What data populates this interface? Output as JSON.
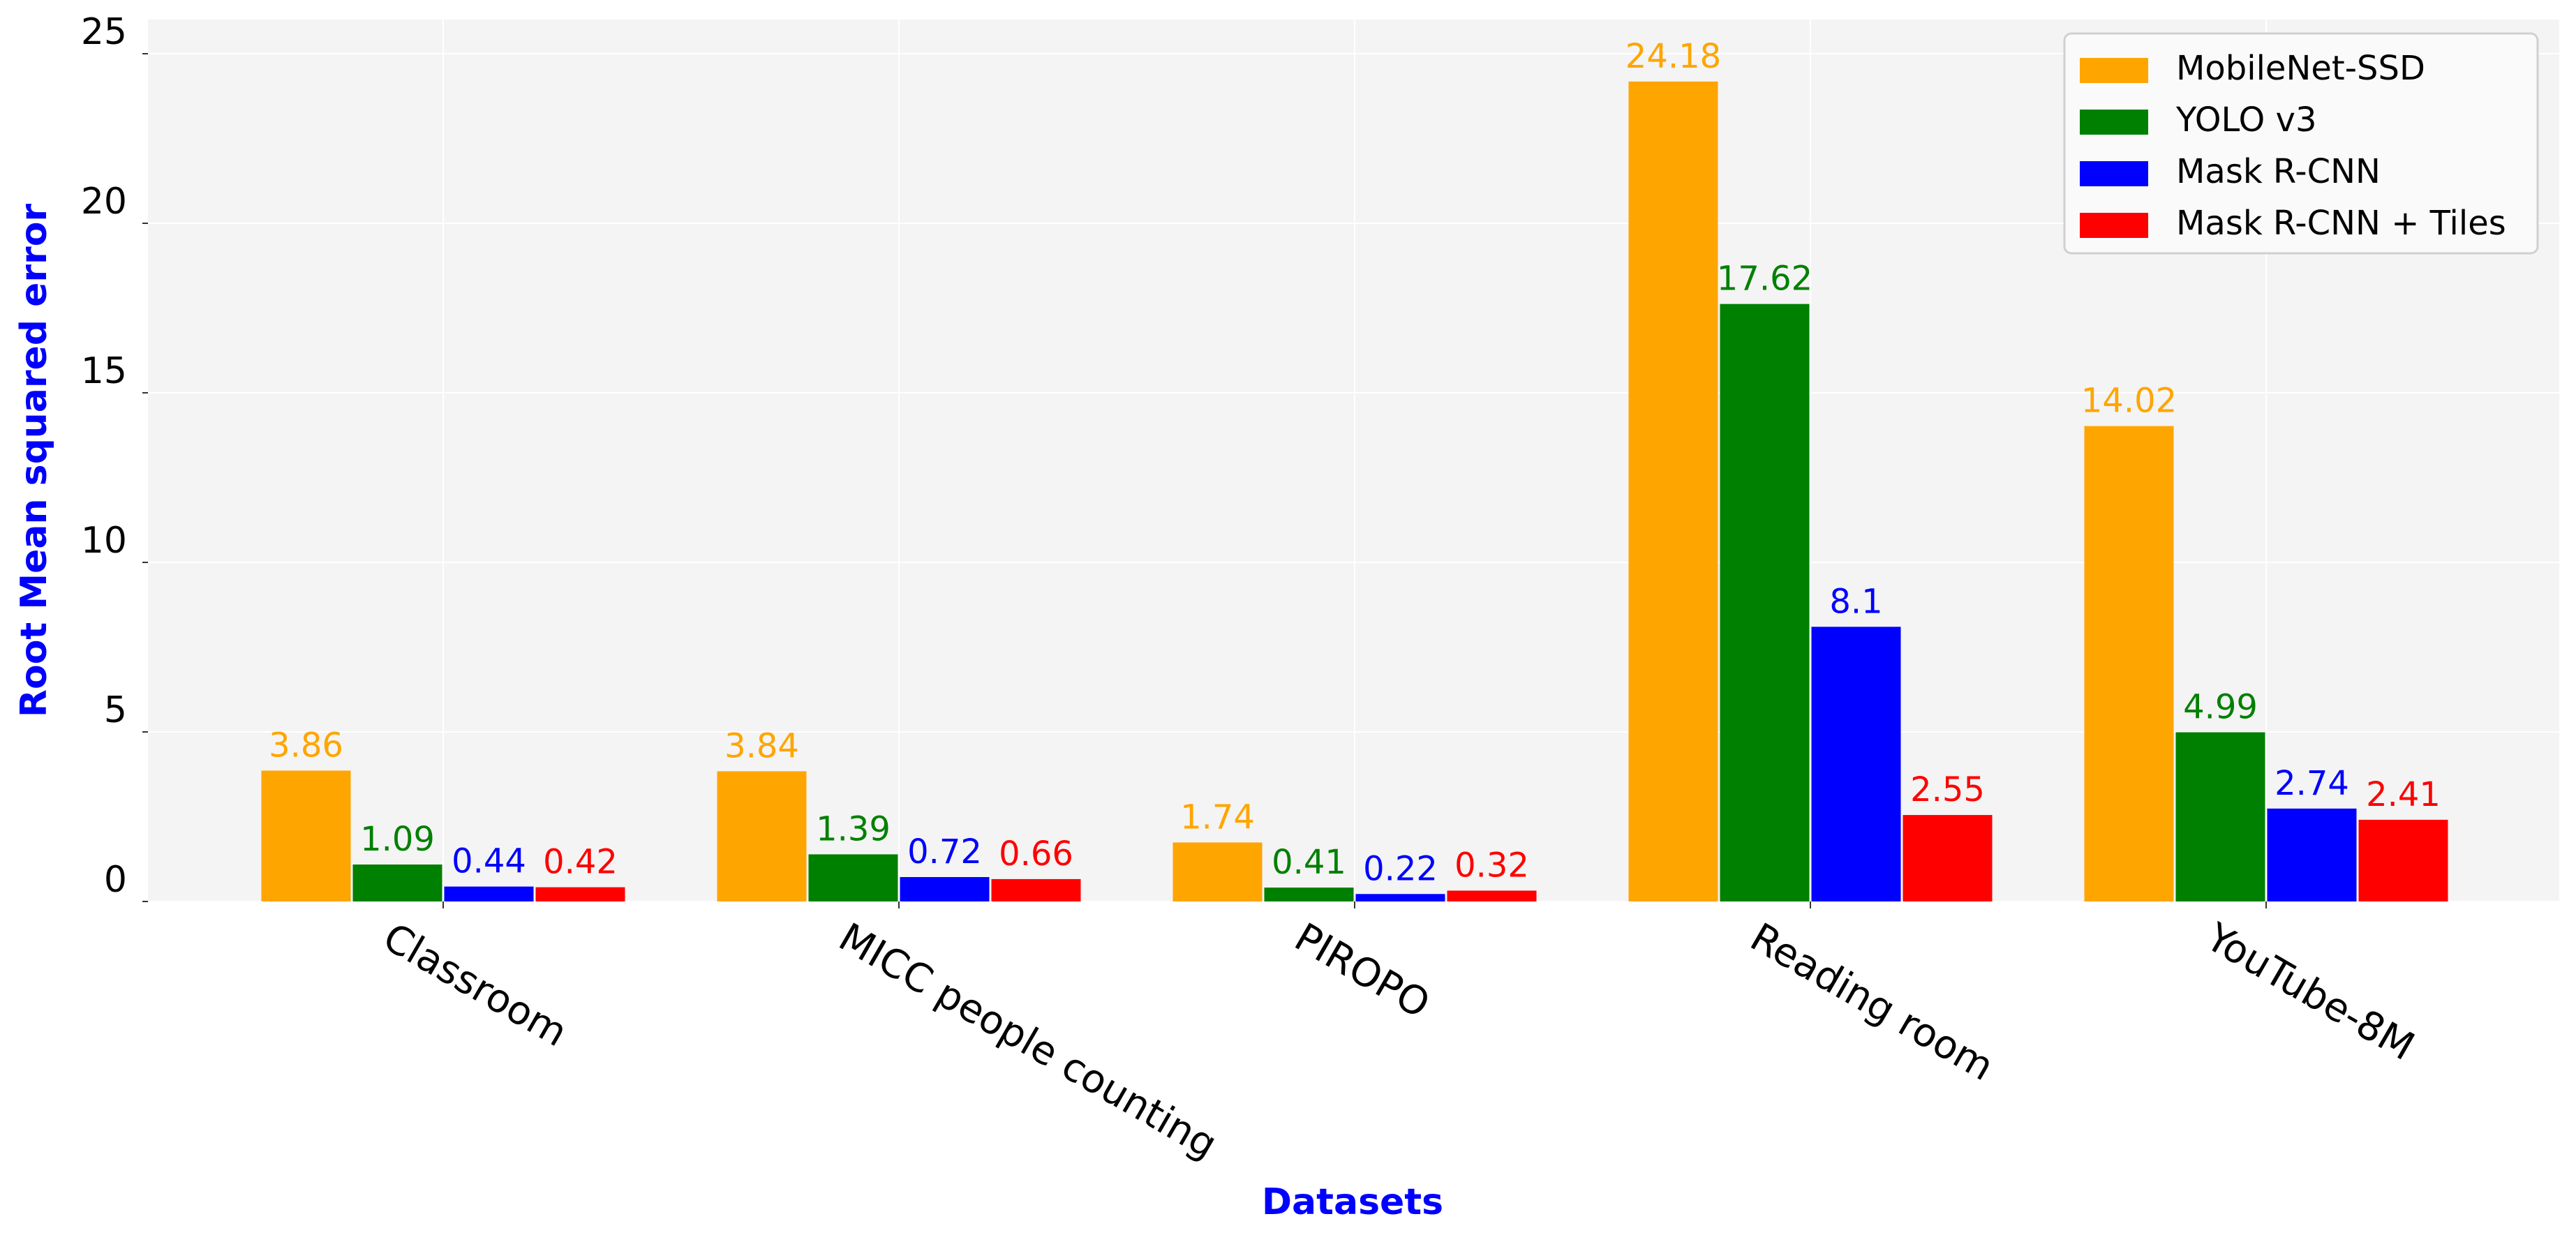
{
  "chart_data": {
    "type": "bar",
    "categories": [
      "Classroom",
      "MICC people counting",
      "PIROPO",
      "Reading room",
      "YouTube-8M"
    ],
    "series": [
      {
        "name": "MobileNet-SSD",
        "color": "#FFA500",
        "values": [
          3.86,
          3.84,
          1.74,
          24.18,
          14.02
        ],
        "labels": [
          "3.86",
          "3.84",
          "1.74",
          "24.18",
          "14.02"
        ]
      },
      {
        "name": "YOLO v3",
        "color": "#008000",
        "values": [
          1.09,
          1.39,
          0.41,
          17.62,
          4.99
        ],
        "labels": [
          "1.09",
          "1.39",
          "0.41",
          "17.62",
          "4.99"
        ]
      },
      {
        "name": "Mask R-CNN",
        "color": "#0000FF",
        "values": [
          0.44,
          0.72,
          0.22,
          8.1,
          2.74
        ],
        "labels": [
          "0.44",
          "0.72",
          "0.22",
          "8.1",
          "2.74"
        ]
      },
      {
        "name": "Mask R-CNN + Tiles",
        "color": "#FF0000",
        "values": [
          0.42,
          0.66,
          0.32,
          2.55,
          2.41
        ],
        "labels": [
          "0.42",
          "0.66",
          "0.32",
          "2.55",
          "2.41"
        ]
      }
    ],
    "xlabel": "Datasets",
    "ylabel": "Root Mean squared error",
    "axis_label_color": "#0000FF",
    "ylim": [
      0,
      26
    ],
    "yticks": [
      0,
      5,
      10,
      15,
      20,
      25
    ],
    "ytick_labels": [
      "0",
      "5",
      "10",
      "15",
      "20",
      "25"
    ],
    "grid": true,
    "background": "#F4F4F4",
    "legend_position": "top-right",
    "xtick_rotation": "diagonal-down"
  }
}
